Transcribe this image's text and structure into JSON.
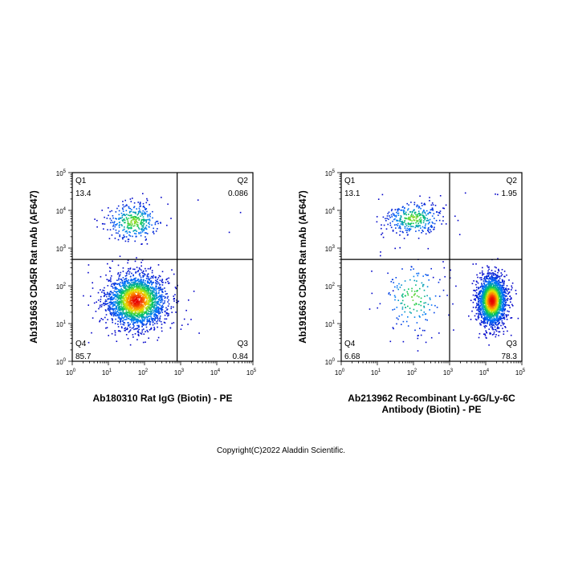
{
  "chart_data": [
    {
      "type": "scatter",
      "xlabel": "Ab180310 Rat IgG (Biotin) - PE",
      "ylabel": "Ab191663 CD45R Rat mAb (AF647)",
      "x_scale": "log",
      "y_scale": "log",
      "xlim": [
        1,
        100000
      ],
      "ylim": [
        1,
        100000
      ],
      "x_ticks": [
        "10^0",
        "10^1",
        "10^2",
        "10^3",
        "10^4",
        "10^5"
      ],
      "y_ticks": [
        "10^0",
        "10^1",
        "10^2",
        "10^3",
        "10^4",
        "10^5"
      ],
      "gate": {
        "x": 800,
        "y": 500
      },
      "quadrants": [
        {
          "label": "Q1",
          "value": "13.4"
        },
        {
          "label": "Q2",
          "value": "0.086"
        },
        {
          "label": "Q3",
          "value": "0.84"
        },
        {
          "label": "Q4",
          "value": "85.7"
        }
      ],
      "populations": [
        {
          "center_x": 60,
          "center_y": 40,
          "spread_x_decades": 0.42,
          "spread_y_decades": 0.36,
          "fraction": 0.857
        },
        {
          "center_x": 50,
          "center_y": 5000,
          "spread_x_decades": 0.38,
          "spread_y_decades": 0.26,
          "fraction": 0.134
        }
      ]
    },
    {
      "type": "scatter",
      "xlabel": "Ab213962 Recombinant Ly-6G/Ly-6C Antibody (Biotin) - PE",
      "ylabel": "Ab191663 CD45R Rat mAb (AF647)",
      "x_scale": "log",
      "y_scale": "log",
      "xlim": [
        1,
        100000
      ],
      "ylim": [
        1,
        100000
      ],
      "x_ticks": [
        "10^0",
        "10^1",
        "10^2",
        "10^3",
        "10^4",
        "10^5"
      ],
      "y_ticks": [
        "10^0",
        "10^1",
        "10^2",
        "10^3",
        "10^4",
        "10^5"
      ],
      "gate": {
        "x": 1000,
        "y": 500
      },
      "quadrants": [
        {
          "label": "Q1",
          "value": "13.1"
        },
        {
          "label": "Q2",
          "value": "1.95"
        },
        {
          "label": "Q3",
          "value": "78.3"
        },
        {
          "label": "Q4",
          "value": "6.68"
        }
      ],
      "populations": [
        {
          "center_x": 15000,
          "center_y": 40,
          "spread_x_decades": 0.2,
          "spread_y_decades": 0.34,
          "fraction": 0.783
        },
        {
          "center_x": 100,
          "center_y": 6000,
          "spread_x_decades": 0.4,
          "spread_y_decades": 0.22,
          "fraction": 0.131
        },
        {
          "center_x": 100,
          "center_y": 50,
          "spread_x_decades": 0.45,
          "spread_y_decades": 0.5,
          "fraction": 0.0668
        }
      ]
    }
  ],
  "footer": "Copyright(C)2022 Aladdin Scientific."
}
